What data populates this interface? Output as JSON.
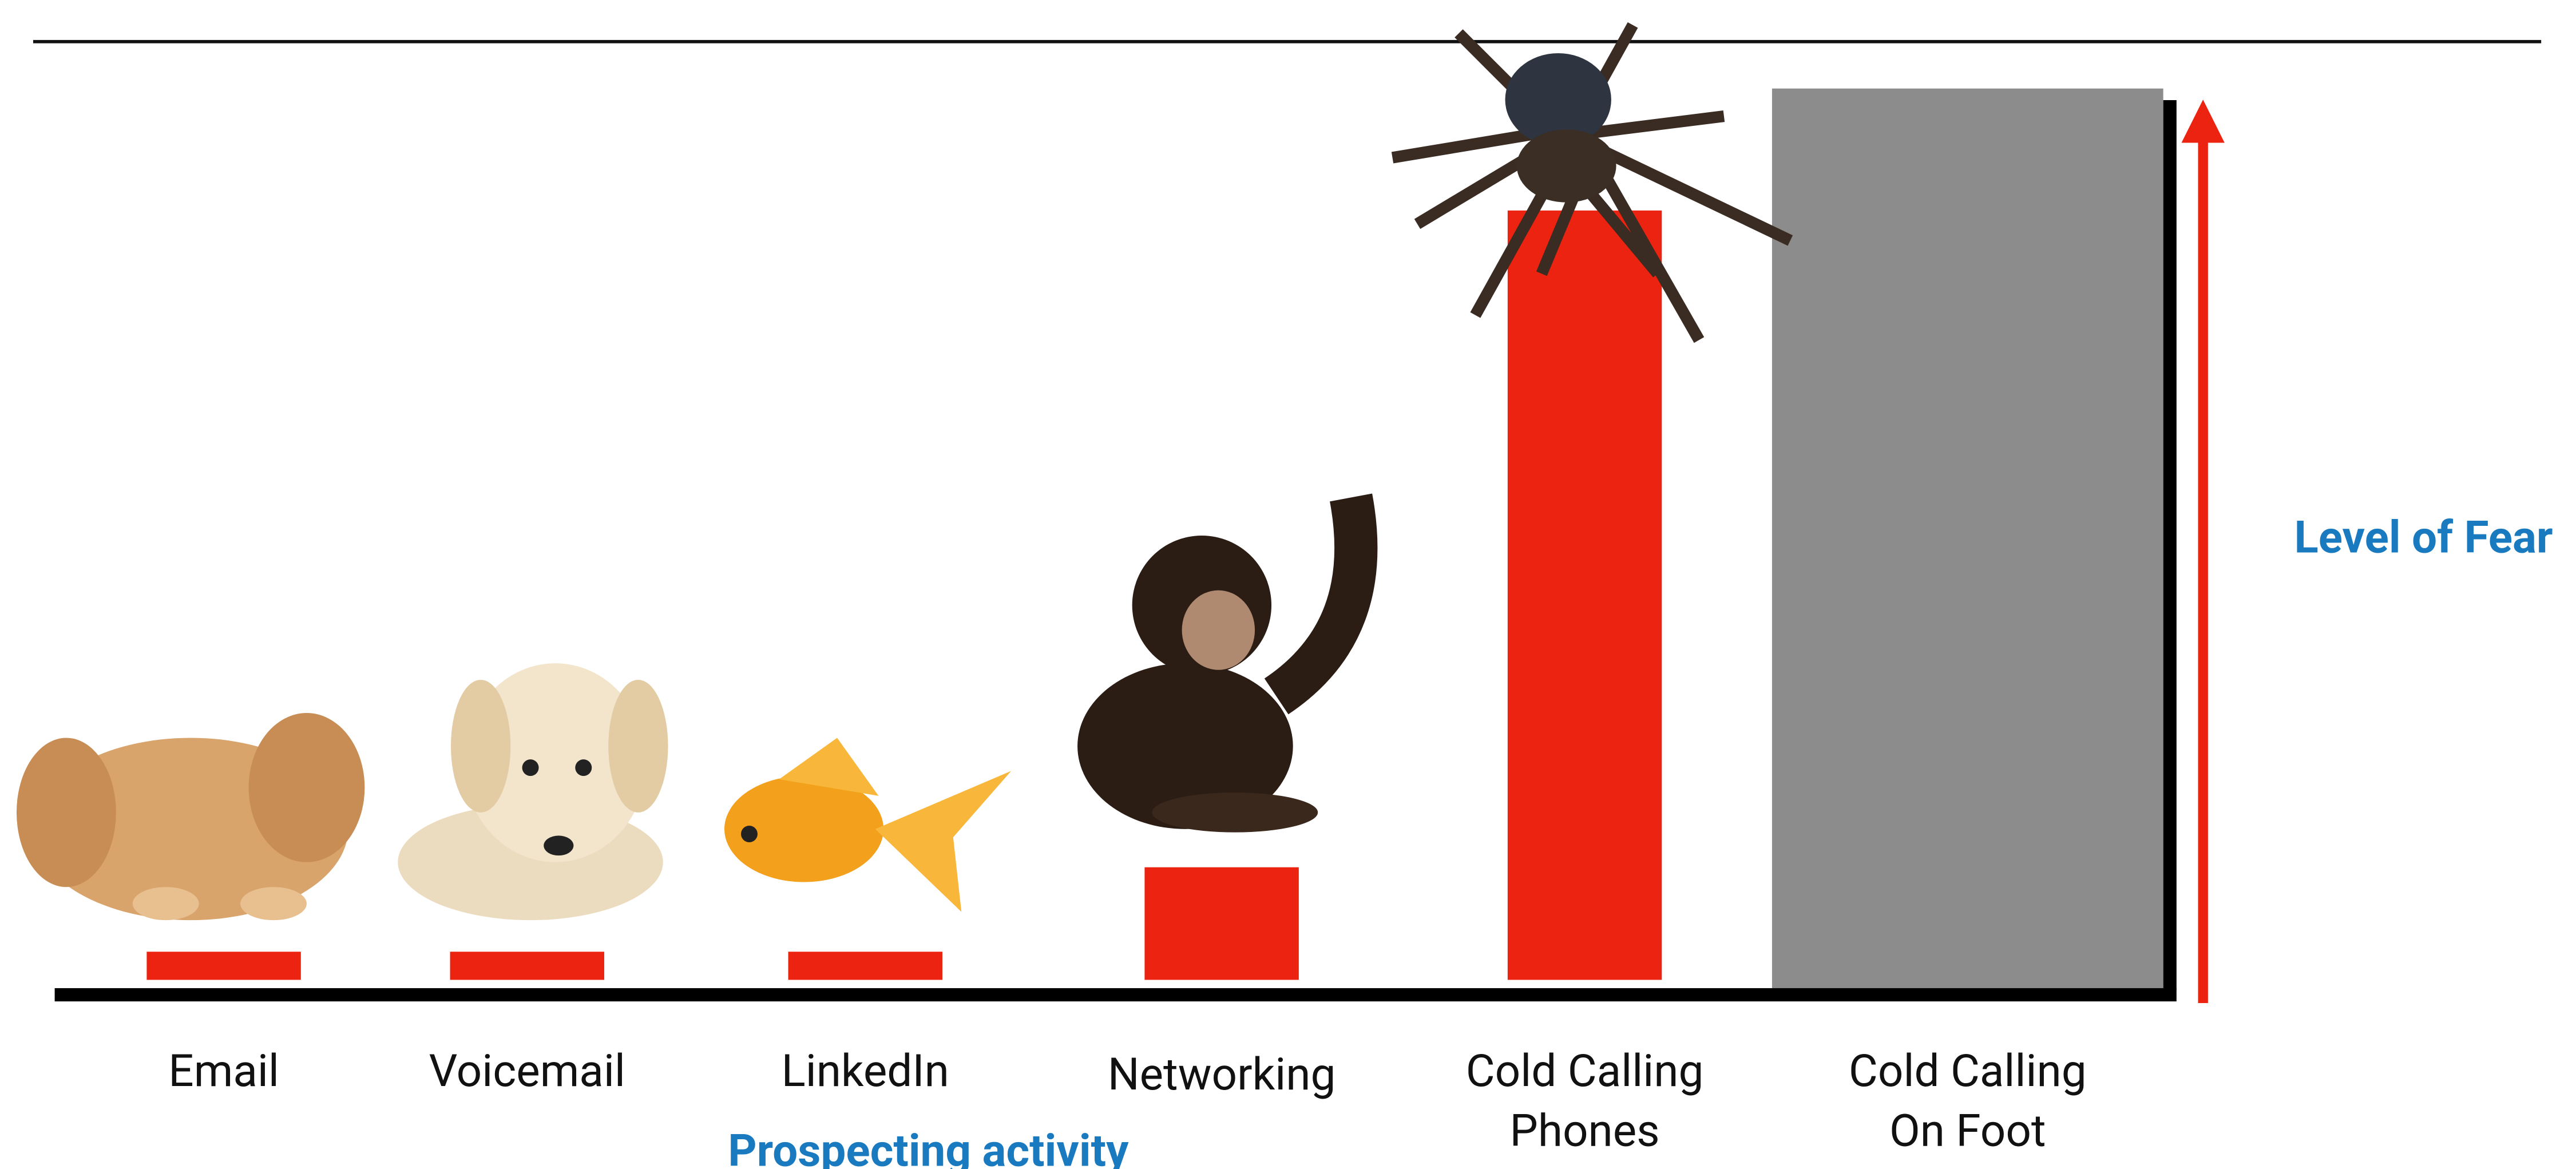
{
  "chart_data": {
    "type": "bar",
    "categories": [
      [
        "Email"
      ],
      [
        "Voicemail"
      ],
      [
        "LinkedIn"
      ],
      [
        "Networking"
      ],
      [
        "Cold Calling",
        "Phones"
      ],
      [
        "Cold Calling",
        "On Foot"
      ]
    ],
    "values": [
      3,
      3,
      3,
      12,
      82,
      95
    ],
    "colors": [
      "#ec2310",
      "#ec2310",
      "#ec2310",
      "#ec2310",
      "#ec2310",
      "#8c8c8c"
    ],
    "ylim": [
      0,
      100
    ],
    "x_label": "Prospecting activity",
    "y_label": "Level of Fear"
  }
}
